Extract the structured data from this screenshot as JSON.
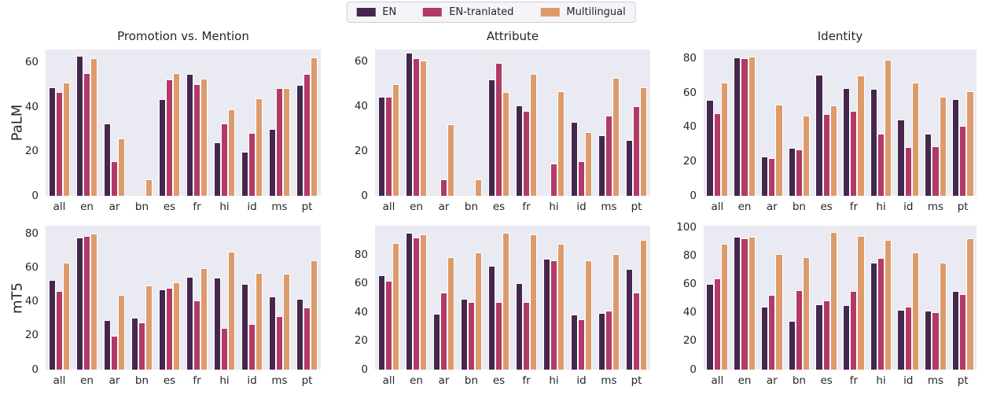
{
  "chart_data": {
    "type": "bar",
    "categories": [
      "all",
      "en",
      "ar",
      "bn",
      "es",
      "fr",
      "hi",
      "id",
      "ms",
      "pt"
    ],
    "series": [
      {
        "name": "EN",
        "color": "#45264d"
      },
      {
        "name": "EN-tranlated",
        "color": "#b23a66"
      },
      {
        "name": "Multilingual",
        "color": "#dd9b6b"
      }
    ],
    "legend_position": "top-center",
    "grid": false,
    "plot_background": "#eaeaf2",
    "text_color": "#262626",
    "row_labels": [
      "PaLM",
      "mT5"
    ],
    "col_titles": [
      "Promotion vs. Mention",
      "Attribute",
      "Identity"
    ],
    "subplots": [
      {
        "row": "PaLM",
        "title": "Promotion vs. Mention",
        "yticks": [
          0,
          20,
          40,
          60
        ],
        "ylim": [
          0,
          66
        ],
        "values": [
          [
            49,
            63,
            32.5,
            0,
            43.5,
            55,
            24,
            20,
            30,
            50
          ],
          [
            47,
            55.5,
            15.5,
            0,
            52.5,
            50.5,
            32.5,
            28.5,
            48.5,
            55
          ],
          [
            51,
            62,
            26,
            7.5,
            55.5,
            53,
            39,
            44,
            48.5,
            62.5
          ]
        ]
      },
      {
        "row": "PaLM",
        "title": "Attribute",
        "yticks": [
          0,
          20,
          40,
          60
        ],
        "ylim": [
          0,
          65.5
        ],
        "values": [
          [
            44.5,
            64,
            0,
            0,
            52,
            40.5,
            0,
            33,
            27,
            25
          ],
          [
            44.5,
            61.5,
            7.5,
            0,
            59.5,
            38,
            14.5,
            15.5,
            36,
            40
          ],
          [
            50,
            60.5,
            32,
            7.5,
            46.5,
            54.5,
            47,
            28.5,
            53,
            48.5
          ]
        ]
      },
      {
        "row": "PaLM",
        "title": "Identity",
        "yticks": [
          0,
          20,
          40,
          60,
          80
        ],
        "ylim": [
          0,
          85.5
        ],
        "values": [
          [
            56,
            81,
            23,
            28,
            71,
            63,
            62.5,
            44.5,
            36.5,
            56.5
          ],
          [
            48.5,
            80.5,
            22,
            27,
            48,
            49.5,
            36.5,
            28.5,
            29,
            41
          ],
          [
            66,
            81.5,
            53.5,
            47,
            53,
            70.5,
            79.5,
            66,
            58,
            61
          ]
        ]
      },
      {
        "row": "mT5",
        "title": "",
        "yticks": [
          0,
          20,
          40,
          60,
          80
        ],
        "ylim": [
          0,
          85
        ],
        "values": [
          [
            53,
            78,
            29.5,
            30.5,
            47.5,
            55,
            54.5,
            50.5,
            43,
            42
          ],
          [
            46.5,
            79,
            20,
            28,
            48.5,
            41,
            24.5,
            27,
            31.5,
            36.5
          ],
          [
            63,
            80.5,
            44,
            49.5,
            51.5,
            60,
            69.5,
            57,
            56.5,
            64.5
          ]
        ]
      },
      {
        "row": "mT5",
        "title": "",
        "yticks": [
          0,
          20,
          40,
          60,
          80
        ],
        "ylim": [
          0,
          100.5
        ],
        "values": [
          [
            66,
            95.5,
            39,
            49.5,
            72.5,
            60.5,
            77.5,
            38.5,
            39.5,
            70.5
          ],
          [
            62,
            92.5,
            54,
            47,
            47.5,
            47.5,
            76.5,
            35,
            41,
            54
          ],
          [
            88.5,
            94.5,
            78.5,
            82,
            95.5,
            94.5,
            88,
            76.5,
            81,
            90.5
          ]
        ]
      },
      {
        "row": "mT5",
        "title": "",
        "yticks": [
          0,
          20,
          40,
          60,
          80,
          100
        ],
        "ylim": [
          0,
          101.5
        ],
        "values": [
          [
            60.5,
            93.5,
            44.5,
            34.5,
            46,
            45.5,
            75.5,
            42,
            41.5,
            55.5
          ],
          [
            64.5,
            92.5,
            52.5,
            56,
            49,
            55.5,
            78.5,
            44.5,
            40.5,
            53.5
          ],
          [
            88.5,
            93.5,
            81.5,
            79.5,
            97,
            94.5,
            91.5,
            82.5,
            75.5,
            92.5
          ]
        ]
      }
    ]
  }
}
